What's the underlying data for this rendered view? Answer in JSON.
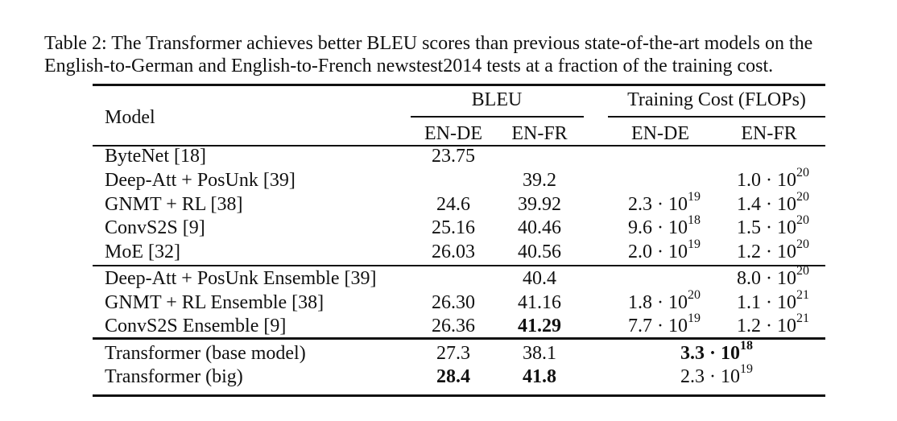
{
  "caption": {
    "label": "Table 2:",
    "text": "The Transformer achieves better BLEU scores than previous state-of-the-art models on the English-to-German and English-to-French newstest2014 tests at a fraction of the training cost."
  },
  "table": {
    "header": {
      "model": "Model",
      "bleu": "BLEU",
      "cost": "Training Cost (FLOPs)",
      "sub": [
        "EN-DE",
        "EN-FR",
        "EN-DE",
        "EN-FR"
      ]
    },
    "groups": [
      [
        {
          "model": "ByteNet [18]",
          "bleu_de": "23.75"
        },
        {
          "model": "Deep-Att + PosUnk [39]",
          "bleu_fr": "39.2",
          "cost_fr": {
            "base": "1.0 · 10",
            "exp": "20"
          }
        },
        {
          "model": "GNMT + RL [38]",
          "bleu_de": "24.6",
          "bleu_fr": "39.92",
          "cost_de": {
            "base": "2.3 · 10",
            "exp": "19"
          },
          "cost_fr": {
            "base": "1.4 · 10",
            "exp": "20"
          }
        },
        {
          "model": "ConvS2S [9]",
          "bleu_de": "25.16",
          "bleu_fr": "40.46",
          "cost_de": {
            "base": "9.6 · 10",
            "exp": "18"
          },
          "cost_fr": {
            "base": "1.5 · 10",
            "exp": "20"
          }
        },
        {
          "model": "MoE [32]",
          "bleu_de": "26.03",
          "bleu_fr": "40.56",
          "cost_de": {
            "base": "2.0 · 10",
            "exp": "19"
          },
          "cost_fr": {
            "base": "1.2 · 10",
            "exp": "20"
          }
        }
      ],
      [
        {
          "model": "Deep-Att + PosUnk Ensemble [39]",
          "bleu_fr": "40.4",
          "cost_fr": {
            "base": "8.0 · 10",
            "exp": "20"
          }
        },
        {
          "model": "GNMT + RL Ensemble [38]",
          "bleu_de": "26.30",
          "bleu_fr": "41.16",
          "cost_de": {
            "base": "1.8 · 10",
            "exp": "20"
          },
          "cost_fr": {
            "base": "1.1 · 10",
            "exp": "21"
          }
        },
        {
          "model": "ConvS2S Ensemble [9]",
          "bleu_de": "26.36",
          "bleu_fr": "41.29",
          "cost_de": {
            "base": "7.7 · 10",
            "exp": "19"
          },
          "cost_fr": {
            "base": "1.2 · 10",
            "exp": "21"
          },
          "bold": [
            "bleu_fr"
          ]
        }
      ],
      [
        {
          "model": "Transformer (base model)",
          "bleu_de": "27.3",
          "bleu_fr": "38.1",
          "cost": {
            "base": "3.3 · 10",
            "exp": "18"
          },
          "bold": [
            "cost"
          ]
        },
        {
          "model": "Transformer (big)",
          "bleu_de": "28.4",
          "bleu_fr": "41.8",
          "cost": {
            "base": "2.3 · 10",
            "exp": "19"
          },
          "bold": [
            "bleu_de",
            "bleu_fr"
          ]
        }
      ]
    ]
  }
}
